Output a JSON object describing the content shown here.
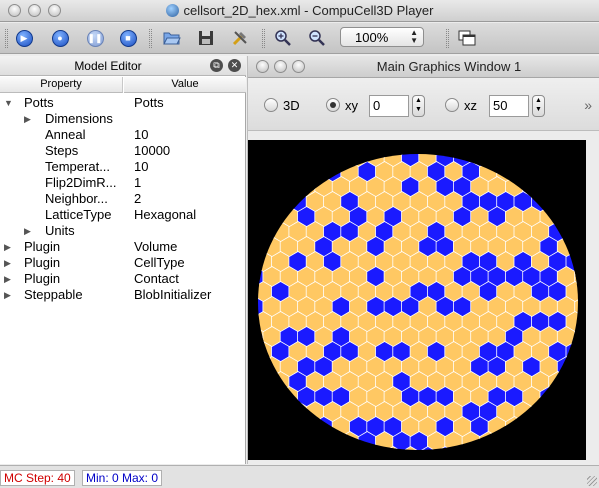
{
  "window": {
    "title": "cellsort_2D_hex.xml - CompuCell3D Player"
  },
  "toolbar": {
    "zoom_value": "100%",
    "icons": [
      "step-icon",
      "run-icon",
      "pause-icon",
      "stop-icon",
      "open-icon",
      "save-icon",
      "tools-icon",
      "zoom-in-icon",
      "zoom-out-icon",
      "windows-icon"
    ]
  },
  "model_editor": {
    "title": "Model Editor",
    "col_property": "Property",
    "col_value": "Value",
    "rows": [
      {
        "prop": "Potts",
        "value": "Potts",
        "level": 0,
        "arrow": "down"
      },
      {
        "prop": "Dimensions",
        "value": "",
        "level": 1,
        "arrow": "right"
      },
      {
        "prop": "Anneal",
        "value": "10",
        "level": 1,
        "arrow": ""
      },
      {
        "prop": "Steps",
        "value": "10000",
        "level": 1,
        "arrow": ""
      },
      {
        "prop": "Temperat...",
        "value": "10",
        "level": 1,
        "arrow": ""
      },
      {
        "prop": "Flip2DimR...",
        "value": "1",
        "level": 1,
        "arrow": ""
      },
      {
        "prop": "Neighbor...",
        "value": "2",
        "level": 1,
        "arrow": ""
      },
      {
        "prop": "LatticeType",
        "value": "Hexagonal",
        "level": 1,
        "arrow": ""
      },
      {
        "prop": "Units",
        "value": "",
        "level": 1,
        "arrow": "right"
      },
      {
        "prop": "Plugin",
        "value": "Volume",
        "level": 0,
        "arrow": "right"
      },
      {
        "prop": "Plugin",
        "value": "CellType",
        "level": 0,
        "arrow": "right"
      },
      {
        "prop": "Plugin",
        "value": "Contact",
        "level": 0,
        "arrow": "right"
      },
      {
        "prop": "Steppable",
        "value": "BlobInitializer",
        "level": 0,
        "arrow": "right"
      }
    ]
  },
  "graphics": {
    "title": "Main Graphics Window 1",
    "opt_3d": "3D",
    "opt_xy": "xy",
    "xy_value": "0",
    "opt_xz": "xz",
    "xz_value": "50",
    "expand_glyph": "»",
    "selected": "xy",
    "colors": {
      "background": "#000000",
      "cell_type_1": "#ffc863",
      "cell_type_2": "#1a1aff",
      "border": "#ffffff"
    }
  },
  "status": {
    "mc_step": "MC Step: 40",
    "min_max": "Min: 0 Max: 0"
  }
}
